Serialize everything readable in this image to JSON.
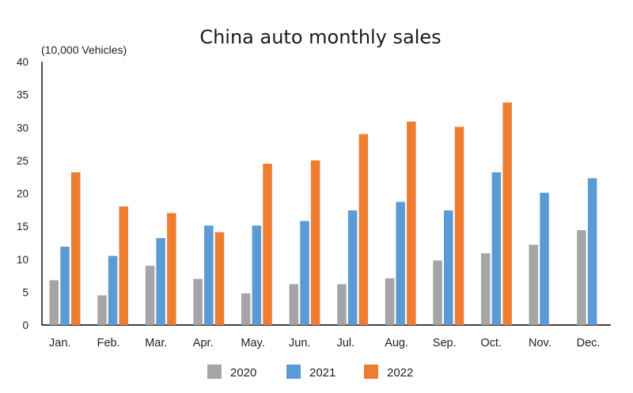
{
  "chart_data": {
    "type": "bar",
    "title": "China auto monthly sales",
    "unit_label": "(10,000 Vehicles)",
    "xlabel": "",
    "ylabel": "",
    "ylim": [
      0,
      40
    ],
    "yticks": [
      0,
      5,
      10,
      15,
      20,
      25,
      30,
      35,
      40
    ],
    "grid": false,
    "legend_position": "bottom",
    "categories": [
      "Jan.",
      "Feb.",
      "Mar.",
      "Apr.",
      "May.",
      "Jun.",
      "Jul.",
      "Aug.",
      "Sep.",
      "Oct.",
      "Nov.",
      "Dec."
    ],
    "series": [
      {
        "name": "2020",
        "color": "#a5a5a5",
        "values": [
          6.8,
          4.5,
          9.0,
          7.0,
          4.8,
          6.2,
          6.2,
          7.1,
          9.8,
          10.9,
          12.2,
          14.4
        ]
      },
      {
        "name": "2021",
        "color": "#5b9bd5",
        "values": [
          11.9,
          10.5,
          13.2,
          15.1,
          15.1,
          15.8,
          17.4,
          18.7,
          17.4,
          23.2,
          20.1,
          22.3
        ]
      },
      {
        "name": "2022",
        "color": "#ed7d31",
        "values": [
          23.2,
          18.0,
          17.0,
          14.1,
          24.5,
          25.0,
          29.0,
          30.9,
          30.1,
          33.8,
          null,
          null
        ]
      }
    ]
  }
}
